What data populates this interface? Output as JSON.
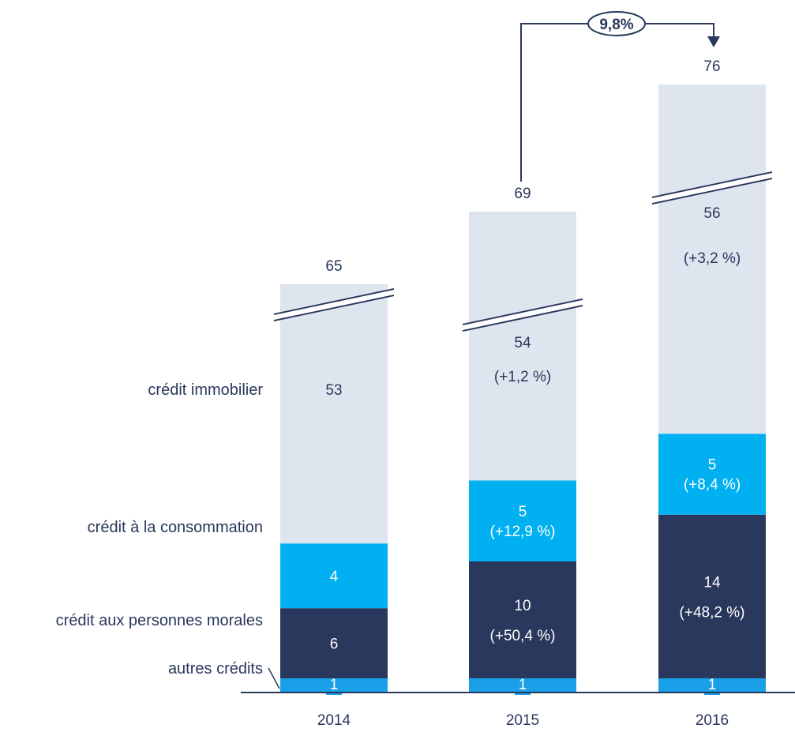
{
  "chart_data": {
    "type": "bar",
    "stacked": true,
    "axis_break": true,
    "categories": [
      "2014",
      "2015",
      "2016"
    ],
    "totals": [
      "65",
      "69",
      "76"
    ],
    "series": [
      {
        "name": "autres crédits",
        "values": [
          1,
          1,
          1
        ],
        "labels": [
          "1",
          "1",
          "1"
        ],
        "color": "#1aa0e8"
      },
      {
        "name": "crédit aux personnes morales",
        "values": [
          6,
          10,
          14
        ],
        "labels": [
          "6",
          "10",
          "14"
        ],
        "growth": [
          "",
          "(+50,4 %)",
          "(+48,2 %)"
        ],
        "color": "#29385c"
      },
      {
        "name": "crédit à la consommation",
        "values": [
          4,
          5,
          5
        ],
        "labels": [
          "4",
          "5",
          "5"
        ],
        "growth": [
          "",
          "(+12,9 %)",
          "(+8,4  %)"
        ],
        "color": "#00b0f0"
      },
      {
        "name": "crédit immobilier",
        "values": [
          53,
          54,
          56
        ],
        "labels": [
          "53",
          "54",
          "56"
        ],
        "growth": [
          "",
          "(+1,2  %)",
          "(+3,2  %)"
        ],
        "color": "#dfe5ef"
      }
    ],
    "annotation": {
      "text": "9,8%",
      "from": "2015",
      "to": "2016"
    },
    "colors": {
      "text": "#29385c",
      "axis": "#29385c",
      "label_on_light": "#29385c",
      "label_on_dark": "#ffffff"
    }
  }
}
